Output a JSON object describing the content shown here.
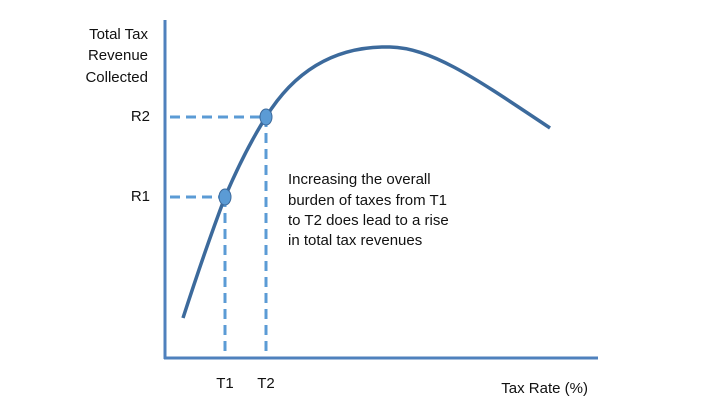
{
  "y_axis_label": [
    "Total Tax",
    "Revenue",
    "Collected"
  ],
  "x_axis_label": "Tax Rate (%)",
  "revenue_labels": [
    "R1",
    "R2"
  ],
  "rate_labels": [
    "T1",
    "T2"
  ],
  "annotation": [
    "Increasing the overall",
    "burden of taxes from T1",
    "to T2 does lead to a rise",
    "in total tax revenues"
  ]
}
